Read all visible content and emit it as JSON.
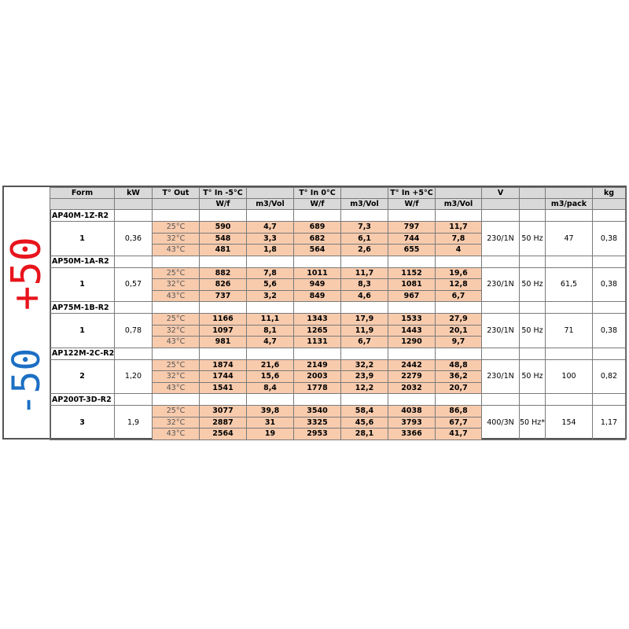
{
  "side_labels": {
    "hot": "+50",
    "cold": "-50",
    "hot_color": "#e8141c",
    "cold_color": "#1c6fc4"
  },
  "header": {
    "row1": [
      "Form",
      "kW",
      "T° Out",
      "T° In -5°C",
      "",
      "T° In 0°C",
      "",
      "T° In +5°C",
      "",
      "V",
      "",
      "",
      "kg"
    ],
    "row2": [
      "",
      "",
      "",
      "W/f",
      "m3/Vol",
      "W/f",
      "m3/Vol",
      "W/f",
      "m3/Vol",
      "",
      "",
      "m3/pack",
      ""
    ]
  },
  "colors": {
    "header_bg": "#d9d9d9",
    "data_bg": "#f8cbad"
  },
  "models": [
    {
      "name": "AP40M-1Z-R2",
      "form": "1",
      "kw": "0,36",
      "v": "230/1N",
      "hz": "50 Hz",
      "pack": "47",
      "kg": "0,38",
      "rows": [
        [
          "25°C",
          "590",
          "4,7",
          "689",
          "7,3",
          "797",
          "11,7"
        ],
        [
          "32°C",
          "548",
          "3,3",
          "682",
          "6,1",
          "744",
          "7,8"
        ],
        [
          "43°C",
          "481",
          "1,8",
          "564",
          "2,6",
          "655",
          "4"
        ]
      ]
    },
    {
      "name": "AP50M-1A-R2",
      "form": "1",
      "kw": "0,57",
      "v": "230/1N",
      "hz": "50 Hz",
      "pack": "61,5",
      "kg": "0,38",
      "rows": [
        [
          "25°C",
          "882",
          "7,8",
          "1011",
          "11,7",
          "1152",
          "19,6"
        ],
        [
          "32°C",
          "826",
          "5,6",
          "949",
          "8,3",
          "1081",
          "12,8"
        ],
        [
          "43°C",
          "737",
          "3,2",
          "849",
          "4,6",
          "967",
          "6,7"
        ]
      ]
    },
    {
      "name": "AP75M-1B-R2",
      "form": "1",
      "kw": "0,78",
      "v": "230/1N",
      "hz": "50 Hz",
      "pack": "71",
      "kg": "0,38",
      "rows": [
        [
          "25°C",
          "1166",
          "11,1",
          "1343",
          "17,9",
          "1533",
          "27,9"
        ],
        [
          "32°C",
          "1097",
          "8,1",
          "1265",
          "11,9",
          "1443",
          "20,1"
        ],
        [
          "43°C",
          "981",
          "4,7",
          "1131",
          "6,7",
          "1290",
          "9,7"
        ]
      ]
    },
    {
      "name": "AP122M-2C-R2",
      "form": "2",
      "kw": "1,20",
      "v": "230/1N",
      "hz": "50 Hz",
      "pack": "100",
      "kg": "0,82",
      "rows": [
        [
          "25°C",
          "1874",
          "21,6",
          "2149",
          "32,2",
          "2442",
          "48,8"
        ],
        [
          "32°C",
          "1744",
          "15,6",
          "2003",
          "23,9",
          "2279",
          "36,2"
        ],
        [
          "43°C",
          "1541",
          "8,4",
          "1778",
          "12,2",
          "2032",
          "20,7"
        ]
      ]
    },
    {
      "name": "AP200T-3D-R2",
      "form": "3",
      "kw": "1,9",
      "v": "400/3N",
      "hz": "50 Hz*",
      "pack": "154",
      "kg": "1,17",
      "rows": [
        [
          "25°C",
          "3077",
          "39,8",
          "3540",
          "58,4",
          "4038",
          "86,8"
        ],
        [
          "32°C",
          "2887",
          "31",
          "3325",
          "45,6",
          "3793",
          "67,7"
        ],
        [
          "43°C",
          "2564",
          "19",
          "2953",
          "28,1",
          "3366",
          "41,7"
        ]
      ]
    }
  ]
}
